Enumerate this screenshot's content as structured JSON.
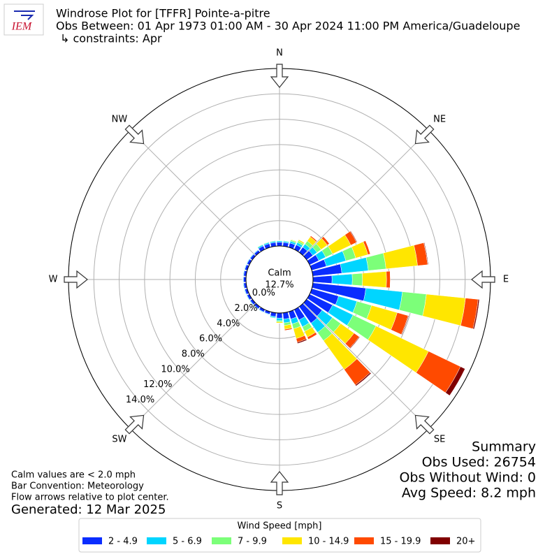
{
  "chart_data": {
    "type": "windrose",
    "logo_text": "IEM",
    "title": "Windrose Plot for [TFFR] Pointe-a-pitre",
    "subtitle": "Obs Between: 01 Apr 1973 01:00 AM - 30 Apr 2024 11:00 PM America/Guadeloupe",
    "constraints": "↳ constraints: Apr",
    "compass_labels": [
      "N",
      "NE",
      "E",
      "SE",
      "S",
      "SW",
      "W",
      "NW"
    ],
    "calm_label": "Calm",
    "calm_value": 12.7,
    "calm_value_label": "12.7%",
    "x": [
      0,
      10,
      20,
      30,
      40,
      50,
      60,
      70,
      80,
      90,
      100,
      110,
      120,
      130,
      140,
      150,
      160,
      170,
      180,
      190,
      200,
      210,
      220,
      230,
      240,
      250,
      260,
      270,
      280,
      290,
      300,
      310,
      320,
      330,
      340,
      350
    ],
    "ylim": [
      0,
      14
    ],
    "yticks": [
      {
        "value": 0,
        "label": "0.0%"
      },
      {
        "value": 2,
        "label": "2.0%"
      },
      {
        "value": 4,
        "label": "4.0%"
      },
      {
        "value": 6,
        "label": "6.0%"
      },
      {
        "value": 8,
        "label": "8.0%"
      },
      {
        "value": 10,
        "label": "10.0%"
      },
      {
        "value": 12,
        "label": "12.0%"
      },
      {
        "value": 14,
        "label": "14.0%"
      }
    ],
    "grid": true,
    "legend_title": "Wind Speed [mph]",
    "series": [
      {
        "name": "2 - 4.9",
        "color": "#0a2dff",
        "values": [
          0.3,
          0.3,
          0.35,
          0.4,
          0.5,
          0.6,
          0.8,
          1.2,
          2.3,
          1.5,
          4.2,
          2.2,
          2.0,
          1.5,
          1.6,
          0.9,
          0.6,
          0.5,
          0.4,
          0.3,
          0.2,
          0.2,
          0.2,
          0.2,
          0.2,
          0.2,
          0.2,
          0.2,
          0.2,
          0.2,
          0.2,
          0.2,
          0.2,
          0.3,
          0.3,
          0.3
        ]
      },
      {
        "name": "5 - 6.9",
        "color": "#00d5ff",
        "values": [
          0.1,
          0.1,
          0.15,
          0.2,
          0.3,
          0.4,
          0.6,
          1.6,
          2.1,
          1.6,
          2.9,
          1.5,
          1.8,
          1.0,
          0.9,
          0.6,
          0.4,
          0.3,
          0.2,
          0.1,
          0.05,
          0.05,
          0.05,
          0.05,
          0.05,
          0.05,
          0.05,
          0.05,
          0.05,
          0.05,
          0.05,
          0.05,
          0.05,
          0.1,
          0.1,
          0.1
        ]
      },
      {
        "name": "7 - 9.9",
        "color": "#7cff79",
        "values": [
          0.05,
          0.05,
          0.1,
          0.15,
          0.3,
          0.4,
          0.6,
          0.8,
          1.4,
          0.8,
          1.9,
          1.2,
          2.0,
          0.8,
          0.8,
          0.4,
          0.4,
          0.2,
          0.1,
          0.05,
          0.02,
          0.02,
          0.02,
          0.02,
          0.02,
          0.02,
          0.02,
          0.02,
          0.02,
          0.02,
          0.02,
          0.02,
          0.02,
          0.05,
          0.05,
          0.05
        ]
      },
      {
        "name": "10 - 14.9",
        "color": "#ffe600",
        "values": [
          0,
          0,
          0.05,
          0.1,
          0.4,
          0.6,
          1.6,
          1.0,
          2.5,
          1.9,
          3.1,
          2.1,
          4.6,
          1.3,
          2.8,
          0.5,
          0.8,
          0.3,
          0.1,
          0,
          0,
          0,
          0,
          0,
          0,
          0,
          0,
          0,
          0,
          0,
          0,
          0,
          0,
          0,
          0,
          0
        ]
      },
      {
        "name": "15 - 19.9",
        "color": "#ff4a00",
        "values": [
          0,
          0,
          0,
          0.02,
          0.1,
          0.2,
          0.5,
          0.2,
          0.8,
          0.3,
          1.0,
          0.9,
          2.8,
          0.5,
          1.5,
          0.2,
          0.3,
          0.1,
          0,
          0,
          0,
          0,
          0,
          0,
          0,
          0,
          0,
          0,
          0,
          0,
          0,
          0,
          0,
          0,
          0,
          0
        ]
      },
      {
        "name": "20+",
        "color": "#800000",
        "values": [
          0,
          0,
          0,
          0,
          0,
          0,
          0.05,
          0,
          0.05,
          0,
          0.1,
          0.05,
          0.4,
          0.05,
          0.1,
          0,
          0.1,
          0,
          0,
          0,
          0,
          0,
          0,
          0,
          0,
          0,
          0,
          0,
          0,
          0,
          0,
          0,
          0,
          0,
          0,
          0
        ]
      }
    ],
    "summary": [
      "Summary",
      "Obs Used: 26754",
      "Obs Without Wind: 0",
      "Avg Speed: 8.2 mph"
    ],
    "notes": [
      "Calm values are < 2.0 mph",
      "Bar Convention: Meteorology",
      "Flow arrows relative to plot center."
    ],
    "generated": "Generated: 12 Mar 2025"
  }
}
